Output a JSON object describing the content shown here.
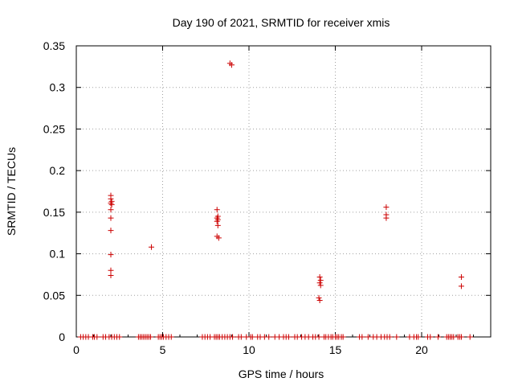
{
  "chart_data": {
    "type": "scatter",
    "title": "Day 190 of 2021, SRMTID for receiver xmis",
    "xlabel": "GPS time / hours",
    "ylabel": "SRMTID / TECUs",
    "xlim": [
      0,
      24
    ],
    "ylim": [
      0,
      0.35
    ],
    "x_ticks": [
      0,
      5,
      10,
      15,
      20
    ],
    "y_ticks": [
      0,
      0.05,
      0.1,
      0.15,
      0.2,
      0.25,
      0.3,
      0.35
    ],
    "x_tick_labels": [
      "0",
      "5",
      "10",
      "15",
      "20"
    ],
    "y_tick_labels": [
      "0",
      "0.05",
      "0.1",
      "0.15",
      "0.2",
      "0.25",
      "0.3",
      "0.35"
    ],
    "grid": true,
    "marker": "+",
    "color": "#cc0000",
    "series": [
      {
        "name": "SRMTID",
        "points": [
          [
            2.0,
            0.17
          ],
          [
            2.0,
            0.166
          ],
          [
            2.05,
            0.163
          ],
          [
            2.0,
            0.161
          ],
          [
            2.05,
            0.159
          ],
          [
            2.0,
            0.153
          ],
          [
            2.0,
            0.143
          ],
          [
            2.0,
            0.128
          ],
          [
            2.0,
            0.099
          ],
          [
            2.0,
            0.08
          ],
          [
            2.0,
            0.074
          ],
          [
            4.35,
            0.108
          ],
          [
            8.9,
            0.329
          ],
          [
            9.0,
            0.327
          ],
          [
            8.15,
            0.153
          ],
          [
            8.2,
            0.145
          ],
          [
            8.15,
            0.143
          ],
          [
            8.2,
            0.141
          ],
          [
            8.15,
            0.139
          ],
          [
            8.2,
            0.134
          ],
          [
            8.15,
            0.121
          ],
          [
            8.25,
            0.119
          ],
          [
            14.1,
            0.072
          ],
          [
            14.15,
            0.068
          ],
          [
            14.1,
            0.065
          ],
          [
            14.15,
            0.062
          ],
          [
            14.05,
            0.047
          ],
          [
            14.1,
            0.044
          ],
          [
            17.95,
            0.156
          ],
          [
            17.95,
            0.147
          ],
          [
            17.95,
            0.143
          ],
          [
            22.3,
            0.072
          ],
          [
            22.3,
            0.061
          ],
          [
            0.25,
            0
          ],
          [
            0.4,
            0
          ],
          [
            0.55,
            0
          ],
          [
            0.7,
            0
          ],
          [
            0.95,
            0
          ],
          [
            1.05,
            0
          ],
          [
            1.2,
            0
          ],
          [
            1.55,
            0
          ],
          [
            1.7,
            0
          ],
          [
            1.9,
            0
          ],
          [
            2.05,
            0
          ],
          [
            2.2,
            0
          ],
          [
            2.35,
            0
          ],
          [
            2.5,
            0
          ],
          [
            3.6,
            0
          ],
          [
            3.7,
            0
          ],
          [
            3.8,
            0
          ],
          [
            3.9,
            0
          ],
          [
            4.0,
            0
          ],
          [
            4.1,
            0
          ],
          [
            4.2,
            0
          ],
          [
            4.3,
            0
          ],
          [
            4.75,
            0
          ],
          [
            4.85,
            0
          ],
          [
            4.95,
            0
          ],
          [
            5.05,
            0
          ],
          [
            5.2,
            0
          ],
          [
            5.35,
            0
          ],
          [
            5.5,
            0
          ],
          [
            7.3,
            0
          ],
          [
            7.45,
            0
          ],
          [
            7.6,
            0
          ],
          [
            7.75,
            0
          ],
          [
            8.0,
            0
          ],
          [
            8.1,
            0
          ],
          [
            8.2,
            0
          ],
          [
            8.3,
            0
          ],
          [
            8.45,
            0
          ],
          [
            8.6,
            0
          ],
          [
            8.75,
            0
          ],
          [
            8.9,
            0
          ],
          [
            9.05,
            0
          ],
          [
            9.4,
            0
          ],
          [
            9.55,
            0
          ],
          [
            9.85,
            0
          ],
          [
            10.1,
            0
          ],
          [
            10.2,
            0
          ],
          [
            10.5,
            0
          ],
          [
            10.65,
            0
          ],
          [
            10.9,
            0
          ],
          [
            11.15,
            0
          ],
          [
            11.5,
            0
          ],
          [
            11.75,
            0
          ],
          [
            12.0,
            0
          ],
          [
            12.15,
            0
          ],
          [
            12.3,
            0
          ],
          [
            12.65,
            0
          ],
          [
            12.8,
            0
          ],
          [
            13.05,
            0
          ],
          [
            13.25,
            0
          ],
          [
            13.45,
            0
          ],
          [
            13.7,
            0
          ],
          [
            13.85,
            0
          ],
          [
            14.05,
            0
          ],
          [
            14.35,
            0
          ],
          [
            14.45,
            0
          ],
          [
            14.6,
            0
          ],
          [
            14.75,
            0
          ],
          [
            14.85,
            0
          ],
          [
            15.0,
            0
          ],
          [
            15.1,
            0
          ],
          [
            15.2,
            0
          ],
          [
            15.35,
            0
          ],
          [
            15.45,
            0
          ],
          [
            16.4,
            0
          ],
          [
            16.55,
            0
          ],
          [
            16.9,
            0
          ],
          [
            17.2,
            0
          ],
          [
            17.4,
            0
          ],
          [
            17.65,
            0
          ],
          [
            17.85,
            0
          ],
          [
            18.0,
            0
          ],
          [
            18.15,
            0
          ],
          [
            18.55,
            0
          ],
          [
            19.3,
            0
          ],
          [
            19.55,
            0
          ],
          [
            19.7,
            0
          ],
          [
            19.8,
            0
          ],
          [
            20.35,
            0
          ],
          [
            20.5,
            0
          ],
          [
            20.95,
            0
          ],
          [
            21.45,
            0
          ],
          [
            21.55,
            0
          ],
          [
            21.65,
            0
          ],
          [
            21.75,
            0
          ],
          [
            21.85,
            0
          ],
          [
            22.1,
            0
          ],
          [
            22.2,
            0
          ],
          [
            22.3,
            0
          ],
          [
            22.8,
            0
          ]
        ]
      }
    ]
  }
}
